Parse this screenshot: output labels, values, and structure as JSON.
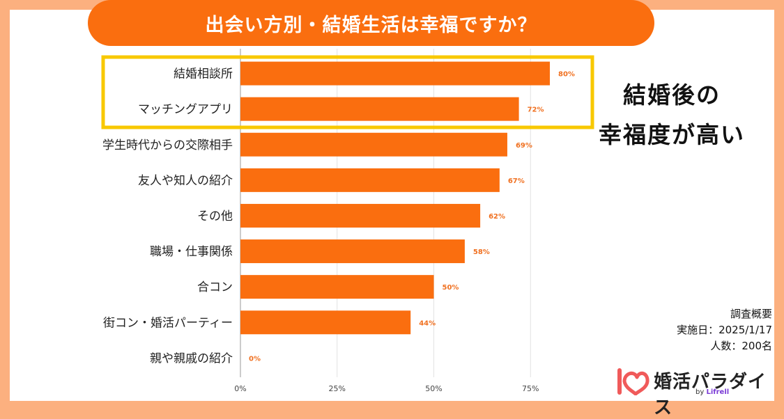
{
  "title": "出会い方別・結婚生活は幸福ですか？",
  "callout": [
    "結婚後の",
    "幸福度が高い"
  ],
  "survey": {
    "heading": "調査概要",
    "date": "実施日：2025/1/17",
    "count": "人数：200名"
  },
  "logo": {
    "name": "婚活パラダイス",
    "by": "by",
    "brand": "Lifrell"
  },
  "colors": {
    "bar": "#fa6e0f",
    "label": "#f07020",
    "highlight": "#f8c800",
    "background": "#fcb07f"
  },
  "chart_data": {
    "type": "bar",
    "orientation": "horizontal",
    "categories": [
      "結婚相談所",
      "マッチングアプリ",
      "学生時代からの交際相手",
      "友人や知人の紹介",
      "その他",
      "職場・仕事関係",
      "合コン",
      "街コン・婚活パーティー",
      "親や親戚の紹介"
    ],
    "values": [
      80,
      72,
      69,
      67,
      62,
      58,
      50,
      44,
      0
    ],
    "value_labels": [
      "80%",
      "72%",
      "69%",
      "67%",
      "62%",
      "58%",
      "50%",
      "44%",
      "0%"
    ],
    "xlim": [
      0,
      100
    ],
    "xticks": [
      0,
      25,
      50,
      75
    ],
    "xtick_labels": [
      "0%",
      "25%",
      "50%",
      "75%"
    ],
    "grid": true,
    "highlighted_categories": [
      "結婚相談所",
      "マッチングアプリ"
    ]
  }
}
